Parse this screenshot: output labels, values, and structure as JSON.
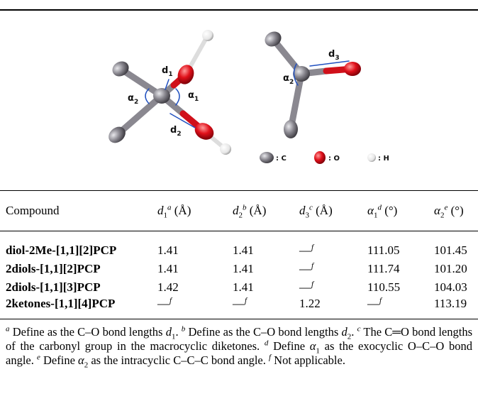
{
  "figure": {
    "labels": [
      {
        "symbol": "d",
        "sub": "1"
      },
      {
        "symbol": "α",
        "sub": "1"
      },
      {
        "symbol": "α",
        "sub": "2"
      },
      {
        "symbol": "d",
        "sub": "2"
      },
      {
        "symbol": "d",
        "sub": "3"
      },
      {
        "symbol": "α",
        "sub": "2"
      }
    ],
    "legend": [
      ": C",
      ": O",
      ": H"
    ]
  },
  "table": {
    "columns": [
      {
        "text": "Compound"
      },
      {
        "symbol": "d",
        "sub": "1",
        "note": "a",
        "unit": "(Å)"
      },
      {
        "symbol": "d",
        "sub": "2",
        "note": "b",
        "unit": "(Å)"
      },
      {
        "symbol": "d",
        "sub": "3",
        "note": "c",
        "unit": "(Å)"
      },
      {
        "symbol": "α",
        "sub": "1",
        "note": "d",
        "unit": "(°)"
      },
      {
        "symbol": "α",
        "sub": "2",
        "note": "e",
        "unit": "(°)"
      }
    ],
    "rows": [
      [
        "diol-2Me-[1,1][2]PCP",
        "1.41",
        "1.41",
        {
          "text": "—",
          "note": "f"
        },
        "111.05",
        "101.45"
      ],
      [
        "2diols-[1,1][2]PCP",
        "1.41",
        "1.41",
        {
          "text": "—",
          "note": "f"
        },
        "111.74",
        "101.20"
      ],
      [
        "2diols-[1,1][3]PCP",
        "1.42",
        "1.41",
        {
          "text": "—",
          "note": "f"
        },
        "110.55",
        "104.03"
      ],
      [
        "2ketones-[1,1][4]PCP",
        {
          "text": "—",
          "note": "f"
        },
        {
          "text": "—",
          "note": "f"
        },
        "1.22",
        {
          "text": "—",
          "note": "f"
        },
        "113.19"
      ]
    ]
  },
  "footnotes": [
    [
      {
        "sup": "a"
      },
      {
        "t": " Define as the C–O bond lengths "
      },
      {
        "i": "d"
      },
      {
        "sub": "1"
      },
      {
        "t": ". "
      }
    ],
    [
      {
        "sup": "b"
      },
      {
        "t": " Define as the C–O bond lengths "
      },
      {
        "i": "d"
      },
      {
        "sub": "2"
      },
      {
        "t": ". "
      }
    ],
    [
      {
        "sup": "c"
      },
      {
        "t": " The C═O bond lengths of the carbonyl group in the macrocyclic diketones. "
      }
    ],
    [
      {
        "sup": "d"
      },
      {
        "t": " Define "
      },
      {
        "i": "α"
      },
      {
        "sub": "1"
      },
      {
        "t": " as the exocyclic O–C–O bond angle. "
      }
    ],
    [
      {
        "sup": "e"
      },
      {
        "t": " Define "
      },
      {
        "i": "α"
      },
      {
        "sub": "2"
      },
      {
        "t": " as the intracyclic C–C–C bond angle. "
      }
    ],
    [
      {
        "sup": "f"
      },
      {
        "t": " Not applicable."
      }
    ]
  ]
}
